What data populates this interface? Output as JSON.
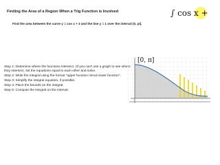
{
  "header": {
    "title": "Finding the Area of a Region When a Trig Function is Involved"
  },
  "problem": "Find the area between the curve y = cos x + 3 and the line y = 1 over the interval [0, pi].",
  "steps": [
    "Step 1: Determine where the functions intersect. (If you can't use a graph to see where they intersect, set the equations equal to each other and solve.",
    "Step 2: Write the integral using the format \"upper function minus lower function\".",
    "Step 3: Simplify the integral equation, if possible.",
    "Step 4: Place the bounds on the integral.",
    "Step 5: Compute the integral on the interval."
  ],
  "annotations": {
    "integral": "∫ cos x +",
    "interval": "[0, π]"
  }
}
